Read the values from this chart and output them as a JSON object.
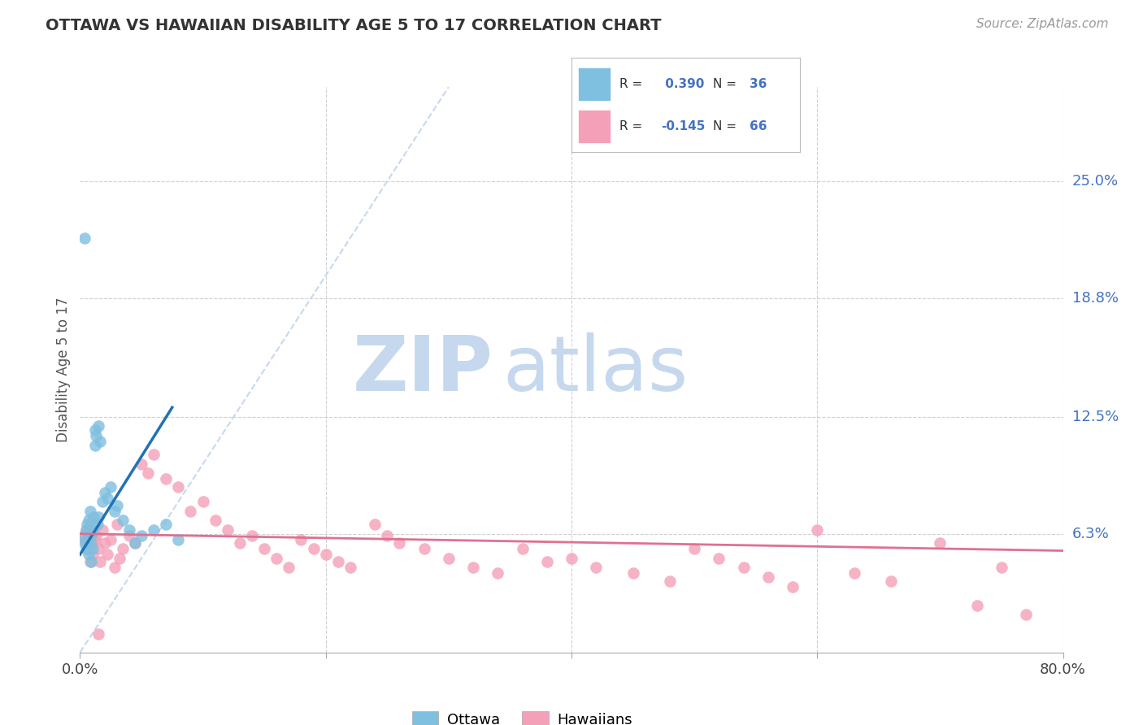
{
  "title": "OTTAWA VS HAWAIIAN DISABILITY AGE 5 TO 17 CORRELATION CHART",
  "source": "Source: ZipAtlas.com",
  "ylabel": "Disability Age 5 to 17",
  "xlim": [
    0.0,
    0.8
  ],
  "ylim": [
    0.0,
    0.3
  ],
  "ottawa_R": 0.39,
  "ottawa_N": 36,
  "hawaiian_R": -0.145,
  "hawaiian_N": 66,
  "ottawa_color": "#7fbfdf",
  "hawaiian_color": "#f4a0b8",
  "ottawa_line_color": "#2171b5",
  "hawaiian_line_color": "#e07090",
  "diagonal_color": "#c8d8ee",
  "background_color": "#ffffff",
  "grid_color": "#d0d0d0",
  "watermark_color": "#dde8f5",
  "ottawa_x": [
    0.003,
    0.004,
    0.005,
    0.005,
    0.006,
    0.006,
    0.007,
    0.007,
    0.008,
    0.008,
    0.009,
    0.009,
    0.01,
    0.01,
    0.011,
    0.012,
    0.012,
    0.013,
    0.014,
    0.015,
    0.015,
    0.016,
    0.018,
    0.02,
    0.022,
    0.025,
    0.028,
    0.03,
    0.035,
    0.04,
    0.045,
    0.05,
    0.06,
    0.07,
    0.08,
    0.004
  ],
  "ottawa_y": [
    0.062,
    0.058,
    0.065,
    0.055,
    0.06,
    0.068,
    0.052,
    0.07,
    0.058,
    0.075,
    0.062,
    0.048,
    0.065,
    0.055,
    0.072,
    0.118,
    0.11,
    0.115,
    0.068,
    0.12,
    0.072,
    0.112,
    0.08,
    0.085,
    0.082,
    0.088,
    0.075,
    0.078,
    0.07,
    0.065,
    0.058,
    0.062,
    0.065,
    0.068,
    0.06,
    0.22
  ],
  "hawaiian_x": [
    0.003,
    0.005,
    0.006,
    0.008,
    0.01,
    0.01,
    0.012,
    0.013,
    0.015,
    0.016,
    0.018,
    0.02,
    0.022,
    0.025,
    0.028,
    0.03,
    0.032,
    0.035,
    0.04,
    0.045,
    0.05,
    0.055,
    0.06,
    0.07,
    0.08,
    0.09,
    0.1,
    0.11,
    0.12,
    0.13,
    0.14,
    0.15,
    0.16,
    0.17,
    0.18,
    0.19,
    0.2,
    0.21,
    0.22,
    0.24,
    0.25,
    0.26,
    0.28,
    0.3,
    0.32,
    0.34,
    0.36,
    0.38,
    0.4,
    0.42,
    0.45,
    0.48,
    0.5,
    0.52,
    0.54,
    0.56,
    0.58,
    0.6,
    0.63,
    0.66,
    0.7,
    0.73,
    0.75,
    0.77,
    0.008,
    0.015
  ],
  "hawaiian_y": [
    0.06,
    0.065,
    0.055,
    0.068,
    0.052,
    0.058,
    0.06,
    0.062,
    0.055,
    0.048,
    0.065,
    0.058,
    0.052,
    0.06,
    0.045,
    0.068,
    0.05,
    0.055,
    0.062,
    0.058,
    0.1,
    0.095,
    0.105,
    0.092,
    0.088,
    0.075,
    0.08,
    0.07,
    0.065,
    0.058,
    0.062,
    0.055,
    0.05,
    0.045,
    0.06,
    0.055,
    0.052,
    0.048,
    0.045,
    0.068,
    0.062,
    0.058,
    0.055,
    0.05,
    0.045,
    0.042,
    0.055,
    0.048,
    0.05,
    0.045,
    0.042,
    0.038,
    0.055,
    0.05,
    0.045,
    0.04,
    0.035,
    0.065,
    0.042,
    0.038,
    0.058,
    0.025,
    0.045,
    0.02,
    0.048,
    0.01
  ],
  "ott_line_x": [
    0.0,
    0.075
  ],
  "ott_line_y": [
    0.052,
    0.13
  ],
  "haw_line_x": [
    0.0,
    0.8
  ],
  "haw_line_y": [
    0.063,
    0.054
  ]
}
